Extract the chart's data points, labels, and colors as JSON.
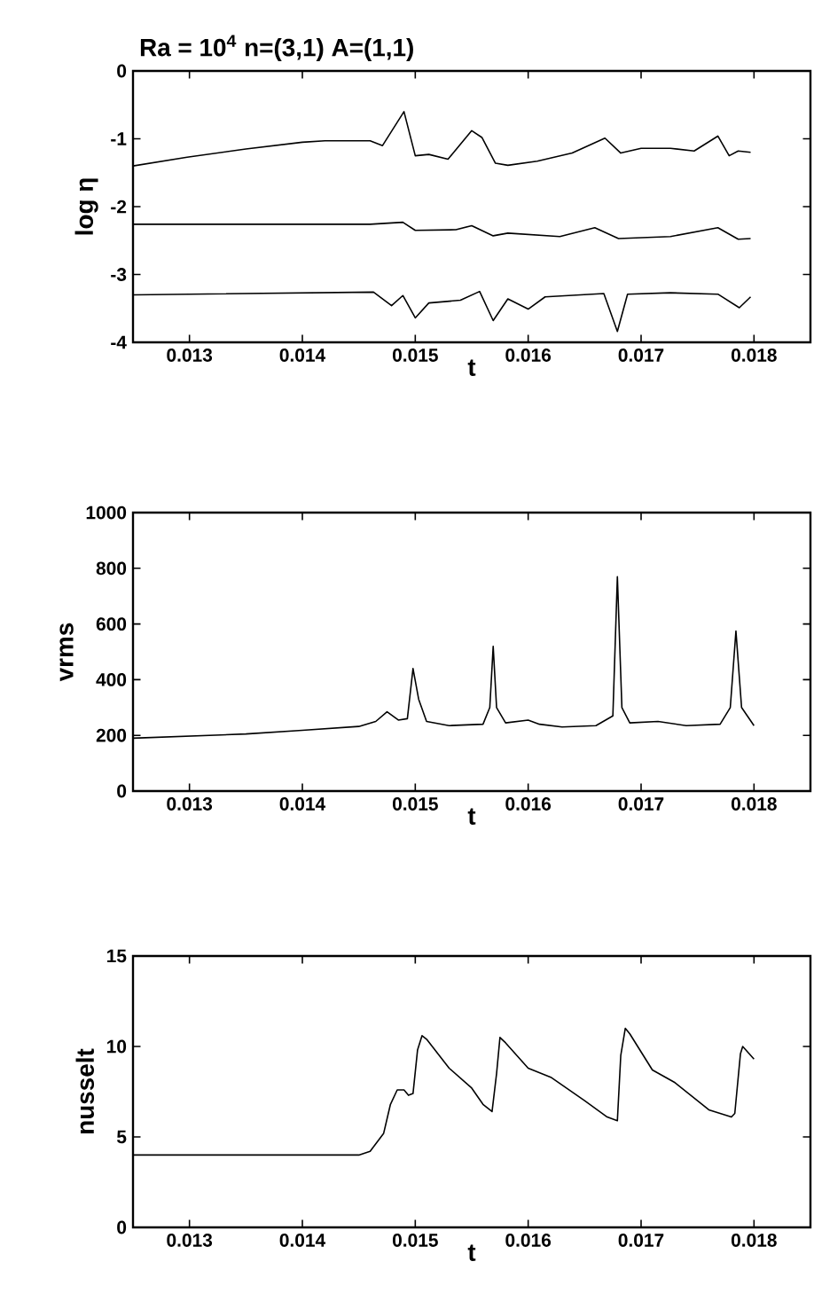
{
  "chart_data": [
    {
      "type": "line",
      "title": "Ra = 10$^{4}$    n=(3,1)    A=(1,1)",
      "xlabel": "t",
      "ylabel": "log η",
      "xlim": [
        0.0125,
        0.0185
      ],
      "xticks": [
        0.013,
        0.014,
        0.015,
        0.016,
        0.017,
        0.018
      ],
      "ylim": [
        -4,
        0
      ],
      "yticks": [
        -4,
        -3,
        -2,
        -1,
        0
      ],
      "series": [
        {
          "color": "#000000",
          "x": [
            0.0125,
            0.01298,
            0.0135,
            0.014,
            0.0142,
            0.0146,
            0.01471,
            0.0149,
            0.015,
            0.01512,
            0.01529,
            0.0155,
            0.01559,
            0.01571,
            0.01582,
            0.01608,
            0.01639,
            0.01668,
            0.01682,
            0.017,
            0.01726,
            0.01747,
            0.01768,
            0.01778,
            0.01786,
            0.01797
          ],
          "values": [
            -1.4,
            -1.27,
            -1.15,
            -1.05,
            -1.03,
            -1.03,
            -1.1,
            -0.6,
            -1.25,
            -1.23,
            -1.3,
            -0.88,
            -0.98,
            -1.36,
            -1.39,
            -1.33,
            -1.21,
            -0.99,
            -1.21,
            -1.14,
            -1.14,
            -1.18,
            -0.96,
            -1.25,
            -1.18,
            -1.2
          ]
        },
        {
          "color": "#000000",
          "x": [
            0.0125,
            0.0146,
            0.01489,
            0.015,
            0.01536,
            0.0155,
            0.01569,
            0.01582,
            0.01628,
            0.01659,
            0.0168,
            0.01726,
            0.01768,
            0.01786,
            0.01797
          ],
          "values": [
            -2.26,
            -2.26,
            -2.23,
            -2.35,
            -2.34,
            -2.28,
            -2.43,
            -2.39,
            -2.44,
            -2.31,
            -2.47,
            -2.44,
            -2.31,
            -2.48,
            -2.47
          ]
        },
        {
          "color": "#000000",
          "x": [
            0.0125,
            0.01463,
            0.01479,
            0.01489,
            0.015,
            0.01512,
            0.0154,
            0.01557,
            0.01569,
            0.01582,
            0.016,
            0.01615,
            0.01667,
            0.01679,
            0.01688,
            0.01726,
            0.01768,
            0.01787,
            0.01797
          ],
          "values": [
            -3.3,
            -3.26,
            -3.46,
            -3.31,
            -3.64,
            -3.42,
            -3.38,
            -3.25,
            -3.68,
            -3.36,
            -3.51,
            -3.33,
            -3.28,
            -3.84,
            -3.29,
            -3.27,
            -3.29,
            -3.49,
            -3.33
          ]
        }
      ]
    },
    {
      "type": "line",
      "xlabel": "t",
      "ylabel": "vrms",
      "xlim": [
        0.0125,
        0.0185
      ],
      "xticks": [
        0.013,
        0.014,
        0.015,
        0.016,
        0.017,
        0.018
      ],
      "ylim": [
        0,
        1000
      ],
      "yticks": [
        0,
        200,
        400,
        600,
        800,
        1000
      ],
      "series": [
        {
          "color": "#000000",
          "x": [
            0.0125,
            0.0135,
            0.014,
            0.0145,
            0.01465,
            0.01475,
            0.01485,
            0.01493,
            0.01498,
            0.01503,
            0.0151,
            0.0153,
            0.0156,
            0.01566,
            0.01569,
            0.01572,
            0.0158,
            0.016,
            0.0161,
            0.0163,
            0.0166,
            0.01675,
            0.01679,
            0.01683,
            0.0169,
            0.01715,
            0.0174,
            0.0177,
            0.01779,
            0.01784,
            0.01789,
            0.018
          ],
          "values": [
            190,
            205,
            218,
            232,
            250,
            285,
            255,
            260,
            440,
            330,
            250,
            235,
            240,
            300,
            520,
            300,
            245,
            255,
            240,
            230,
            235,
            270,
            770,
            300,
            245,
            250,
            235,
            240,
            300,
            575,
            300,
            235
          ]
        }
      ]
    },
    {
      "type": "line",
      "xlabel": "t",
      "ylabel": "nusselt",
      "xlim": [
        0.0125,
        0.0185
      ],
      "xticks": [
        0.013,
        0.014,
        0.015,
        0.016,
        0.017,
        0.018
      ],
      "ylim": [
        0,
        15
      ],
      "yticks": [
        0,
        5,
        10,
        15
      ],
      "series": [
        {
          "color": "#000000",
          "x": [
            0.0125,
            0.0145,
            0.0146,
            0.01472,
            0.01478,
            0.01484,
            0.0149,
            0.01494,
            0.01498,
            0.01502,
            0.01506,
            0.0151,
            0.0153,
            0.0155,
            0.0156,
            0.01568,
            0.01572,
            0.01575,
            0.0158,
            0.016,
            0.0162,
            0.0165,
            0.0167,
            0.01679,
            0.01682,
            0.01686,
            0.0169,
            0.0171,
            0.0173,
            0.0176,
            0.0178,
            0.01783,
            0.01788,
            0.0179,
            0.018
          ],
          "values": [
            4.0,
            4.0,
            4.2,
            5.2,
            6.8,
            7.6,
            7.6,
            7.3,
            7.4,
            9.8,
            10.6,
            10.4,
            8.8,
            7.7,
            6.8,
            6.4,
            8.5,
            10.5,
            10.2,
            8.8,
            8.3,
            7.0,
            6.1,
            5.9,
            9.5,
            11.0,
            10.7,
            8.7,
            8.0,
            6.5,
            6.1,
            6.3,
            9.6,
            10.0,
            9.3
          ]
        }
      ]
    }
  ]
}
